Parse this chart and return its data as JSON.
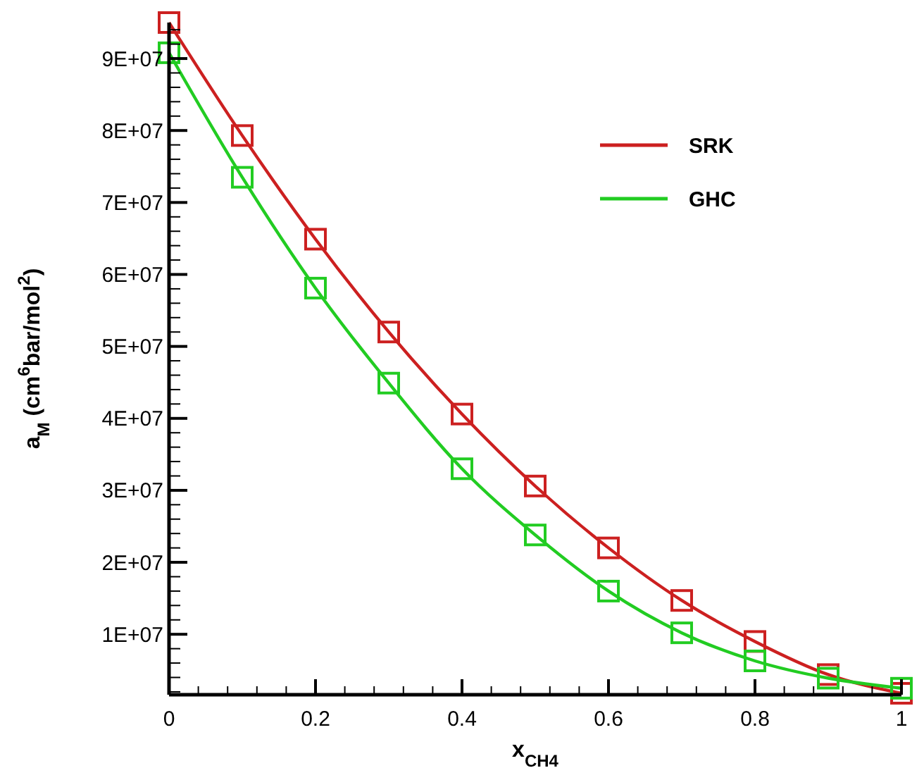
{
  "chart_data": {
    "type": "line",
    "xlabel": "x$_{CH4}$",
    "ylabel": "a$_{M}$ (cm$^{6}$bar/mol$^{2}$)",
    "x": [
      0,
      0.1,
      0.2,
      0.3,
      0.4,
      0.5,
      0.6,
      0.7,
      0.8,
      0.9,
      1
    ],
    "series": [
      {
        "name": "SRK",
        "color": "#cc2020",
        "values": [
          95000000.0,
          79300000.0,
          64900000.0,
          52000000.0,
          40600000.0,
          30600000.0,
          22000000.0,
          14700000.0,
          9000000.0,
          4400000.0,
          1800000.0
        ]
      },
      {
        "name": "GHC",
        "color": "#22cc22",
        "values": [
          90800000.0,
          73500000.0,
          58100000.0,
          44900000.0,
          33000000.0,
          23800000.0,
          16000000.0,
          10200000.0,
          6300000.0,
          3900000.0,
          2500000.0
        ]
      }
    ],
    "xlim": [
      0,
      1
    ],
    "ylim": [
      1600000.0,
      95000000.0
    ],
    "xticks": [
      0,
      {
        "value": 0.04,
        "label": null
      },
      {
        "value": 0.08,
        "label": null
      },
      {
        "value": 0.12,
        "label": null
      },
      {
        "value": 0.16,
        "label": null
      },
      0.2,
      {
        "value": 0.24,
        "label": null
      },
      {
        "value": 0.28,
        "label": null
      },
      {
        "value": 0.32,
        "label": null
      },
      {
        "value": 0.36,
        "label": null
      },
      0.4,
      {
        "value": 0.44,
        "label": null
      },
      {
        "value": 0.48,
        "label": null
      },
      {
        "value": 0.52,
        "label": null
      },
      {
        "value": 0.56,
        "label": null
      },
      0.6,
      {
        "value": 0.64,
        "label": null
      },
      {
        "value": 0.68,
        "label": null
      },
      {
        "value": 0.72,
        "label": null
      },
      {
        "value": 0.76,
        "label": null
      },
      0.8,
      {
        "value": 0.84,
        "label": null
      },
      {
        "value": 0.88,
        "label": null
      },
      {
        "value": 0.92,
        "label": null
      },
      {
        "value": 0.96,
        "label": null
      },
      1
    ],
    "yticks": [
      {
        "value": 2000000.0,
        "label": null
      },
      {
        "value": 4000000.0,
        "label": null
      },
      {
        "value": 6000000.0,
        "label": null
      },
      {
        "value": 8000000.0,
        "label": null
      },
      {
        "value": 10000000.0,
        "label": "1E+07"
      },
      {
        "value": 12000000.0,
        "label": null
      },
      {
        "value": 14000000.0,
        "label": null
      },
      {
        "value": 16000000.0,
        "label": null
      },
      {
        "value": 18000000.0,
        "label": null
      },
      {
        "value": 20000000.0,
        "label": "2E+07"
      },
      {
        "value": 22000000.0,
        "label": null
      },
      {
        "value": 24000000.0,
        "label": null
      },
      {
        "value": 26000000.0,
        "label": null
      },
      {
        "value": 28000000.0,
        "label": null
      },
      {
        "value": 30000000.0,
        "label": "3E+07"
      },
      {
        "value": 32000000.0,
        "label": null
      },
      {
        "value": 34000000.0,
        "label": null
      },
      {
        "value": 36000000.0,
        "label": null
      },
      {
        "value": 38000000.0,
        "label": null
      },
      {
        "value": 40000000.0,
        "label": "4E+07"
      },
      {
        "value": 42000000.0,
        "label": null
      },
      {
        "value": 44000000.0,
        "label": null
      },
      {
        "value": 46000000.0,
        "label": null
      },
      {
        "value": 48000000.0,
        "label": null
      },
      {
        "value": 50000000.0,
        "label": "5E+07"
      },
      {
        "value": 52000000.0,
        "label": null
      },
      {
        "value": 54000000.0,
        "label": null
      },
      {
        "value": 56000000.0,
        "label": null
      },
      {
        "value": 58000000.0,
        "label": null
      },
      {
        "value": 60000000.0,
        "label": "6E+07"
      },
      {
        "value": 62000000.0,
        "label": null
      },
      {
        "value": 64000000.0,
        "label": null
      },
      {
        "value": 66000000.0,
        "label": null
      },
      {
        "value": 68000000.0,
        "label": null
      },
      {
        "value": 70000000.0,
        "label": "7E+07"
      },
      {
        "value": 72000000.0,
        "label": null
      },
      {
        "value": 74000000.0,
        "label": null
      },
      {
        "value": 76000000.0,
        "label": null
      },
      {
        "value": 78000000.0,
        "label": null
      },
      {
        "value": 80000000.0,
        "label": "8E+07"
      },
      {
        "value": 82000000.0,
        "label": null
      },
      {
        "value": 84000000.0,
        "label": null
      },
      {
        "value": 86000000.0,
        "label": null
      },
      {
        "value": 88000000.0,
        "label": null
      },
      {
        "value": 90000000.0,
        "label": "9E+07"
      },
      {
        "value": 92000000.0,
        "label": null
      },
      {
        "value": 94000000.0,
        "label": null
      }
    ],
    "marker": "square",
    "line_style": "solid",
    "legend": "top right",
    "grid": false
  }
}
